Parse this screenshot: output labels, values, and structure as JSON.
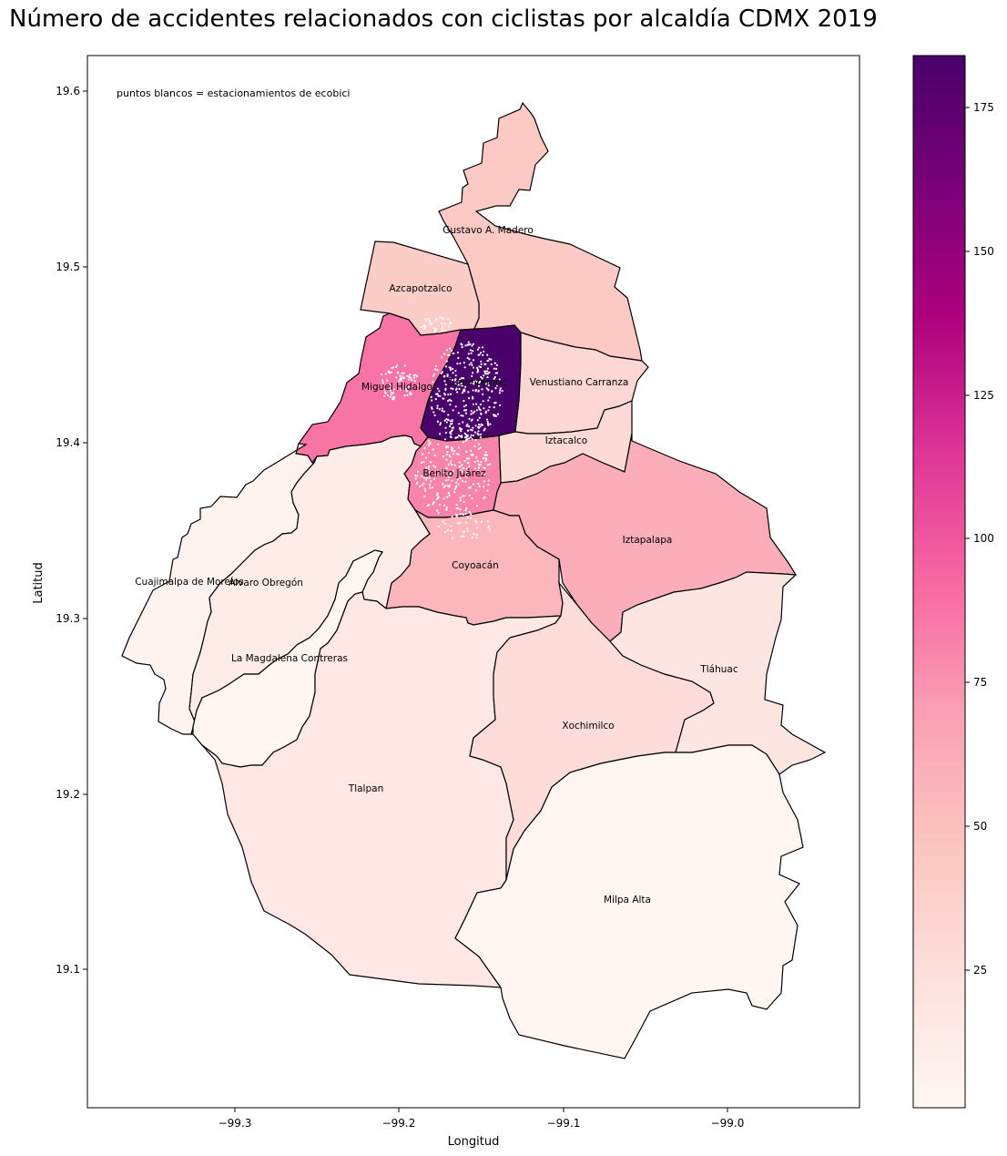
{
  "title": "Número de accidentes relacionados con ciclistas por alcaldía CDMX 2019",
  "annotation": "puntos blancos = estacionamientos de ecobici",
  "xlabel": "Longitud",
  "ylabel": "Latitud",
  "x_ticks": [
    "−99.3",
    "−99.2",
    "−99.1",
    "−99.0"
  ],
  "y_ticks": [
    "19.6",
    "19.5",
    "19.4",
    "19.3",
    "19.2",
    "19.1"
  ],
  "colorbar": {
    "ticks": [
      "25",
      "50",
      "75",
      "100",
      "125",
      "150",
      "175"
    ],
    "min": 2,
    "max": 184,
    "colors": [
      "#fff7f3",
      "#fde0dd",
      "#fcc5c0",
      "#fa9fb5",
      "#f768a1",
      "#dd3497",
      "#ae017e",
      "#7a0177",
      "#49006a"
    ]
  },
  "chart_data": {
    "type": "choropleth",
    "title": "Número de accidentes relacionados con ciclistas por alcaldía CDMX 2019",
    "xlabel": "Longitud",
    "ylabel": "Latitud",
    "xlim": [
      -99.385,
      -98.925
    ],
    "ylim": [
      19.02,
      19.62
    ],
    "colorbar_range": [
      2,
      184
    ],
    "regions": [
      {
        "name": "Gustavo A. Madero",
        "value": 44
      },
      {
        "name": "Azcapotzalco",
        "value": 42
      },
      {
        "name": "Cuauhtémoc",
        "value": 184
      },
      {
        "name": "Miguel Hidalgo",
        "value": 88
      },
      {
        "name": "Venustiano Carranza",
        "value": 32
      },
      {
        "name": "Iztacalco",
        "value": 30
      },
      {
        "name": "Benito Juárez",
        "value": 82
      },
      {
        "name": "Iztapalapa",
        "value": 62
      },
      {
        "name": "Coyoacán",
        "value": 56
      },
      {
        "name": "Cuajimalpa de Morelos",
        "value": 6
      },
      {
        "name": "Álvaro Obregón",
        "value": 13
      },
      {
        "name": "La Magdalena Contreras",
        "value": 3
      },
      {
        "name": "Tlalpan",
        "value": 18
      },
      {
        "name": "Xochimilco",
        "value": 28
      },
      {
        "name": "Tláhuac",
        "value": 20
      },
      {
        "name": "Milpa Alta",
        "value": 4
      }
    ]
  }
}
